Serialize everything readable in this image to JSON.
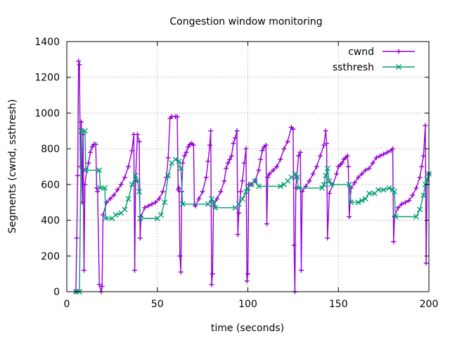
{
  "chart_data": {
    "type": "line",
    "title": "Congestion window monitoring",
    "xlabel": "time (seconds)",
    "ylabel": "Segments (cwnd, ssthresh)",
    "xlim": [
      0,
      200
    ],
    "ylim": [
      0,
      1400
    ],
    "xticks": [
      0,
      50,
      100,
      150,
      200
    ],
    "yticks": [
      0,
      200,
      400,
      600,
      800,
      1000,
      1200,
      1400
    ],
    "grid": true,
    "legend_position": "top-right",
    "colors": {
      "cwnd": "#9400d3",
      "ssthresh": "#009e73"
    },
    "series": [
      {
        "name": "cwnd",
        "marker": "plus",
        "points": [
          [
            5,
            0
          ],
          [
            5.5,
            300
          ],
          [
            6,
            650
          ],
          [
            6.5,
            1290
          ],
          [
            7,
            1270
          ],
          [
            7.5,
            700
          ],
          [
            8,
            950
          ],
          [
            8.5,
            500
          ],
          [
            9,
            880
          ],
          [
            9.5,
            120
          ],
          [
            10,
            600
          ],
          [
            11,
            680
          ],
          [
            12,
            720
          ],
          [
            13,
            780
          ],
          [
            14,
            810
          ],
          [
            15,
            825
          ],
          [
            16,
            825
          ],
          [
            16.5,
            580
          ],
          [
            17,
            560
          ],
          [
            18,
            40
          ],
          [
            19,
            0
          ],
          [
            19.5,
            30
          ],
          [
            20,
            430
          ],
          [
            22,
            500
          ],
          [
            24,
            520
          ],
          [
            26,
            540
          ],
          [
            28,
            570
          ],
          [
            30,
            600
          ],
          [
            32,
            640
          ],
          [
            34,
            700
          ],
          [
            36,
            790
          ],
          [
            37,
            880
          ],
          [
            37.5,
            120
          ],
          [
            38,
            620
          ],
          [
            39,
            880
          ],
          [
            40,
            840
          ],
          [
            40.5,
            300
          ],
          [
            41,
            420
          ],
          [
            43,
            470
          ],
          [
            45,
            480
          ],
          [
            47,
            490
          ],
          [
            49,
            500
          ],
          [
            51,
            520
          ],
          [
            53,
            560
          ],
          [
            55,
            640
          ],
          [
            56,
            750
          ],
          [
            57,
            970
          ],
          [
            58,
            980
          ],
          [
            60,
            980
          ],
          [
            61,
            980
          ],
          [
            61.5,
            570
          ],
          [
            62,
            580
          ],
          [
            62.5,
            200
          ],
          [
            63,
            110
          ],
          [
            63.5,
            560
          ],
          [
            64,
            720
          ],
          [
            65,
            760
          ],
          [
            66,
            780
          ],
          [
            67,
            810
          ],
          [
            68,
            825
          ],
          [
            69,
            830
          ],
          [
            70,
            820
          ],
          [
            70.5,
            490
          ],
          [
            71,
            480
          ],
          [
            73,
            520
          ],
          [
            75,
            560
          ],
          [
            77,
            640
          ],
          [
            78,
            730
          ],
          [
            79,
            820
          ],
          [
            79.5,
            900
          ],
          [
            80,
            40
          ],
          [
            80.5,
            100
          ],
          [
            81,
            480
          ],
          [
            83,
            520
          ],
          [
            85,
            560
          ],
          [
            87,
            620
          ],
          [
            88,
            690
          ],
          [
            89,
            720
          ],
          [
            90,
            740
          ],
          [
            91,
            760
          ],
          [
            92,
            830
          ],
          [
            93,
            860
          ],
          [
            94,
            900
          ],
          [
            94.5,
            320
          ],
          [
            95,
            440
          ],
          [
            96,
            560
          ],
          [
            97,
            620
          ],
          [
            98,
            720
          ],
          [
            99,
            800
          ],
          [
            99.5,
            60
          ],
          [
            100,
            100
          ],
          [
            100.5,
            600
          ],
          [
            102,
            600
          ],
          [
            104,
            620
          ],
          [
            106,
            680
          ],
          [
            107,
            740
          ],
          [
            108,
            790
          ],
          [
            109,
            810
          ],
          [
            110,
            820
          ],
          [
            110.5,
            380
          ],
          [
            111,
            640
          ],
          [
            112,
            660
          ],
          [
            114,
            680
          ],
          [
            116,
            700
          ],
          [
            118,
            740
          ],
          [
            120,
            800
          ],
          [
            122,
            840
          ],
          [
            124,
            920
          ],
          [
            125,
            910
          ],
          [
            125.5,
            260
          ],
          [
            126,
            0
          ],
          [
            126.5,
            580
          ],
          [
            127,
            640
          ],
          [
            128,
            760
          ],
          [
            129,
            780
          ],
          [
            129.5,
            120
          ],
          [
            130,
            560
          ],
          [
            132,
            590
          ],
          [
            134,
            620
          ],
          [
            136,
            660
          ],
          [
            138,
            700
          ],
          [
            140,
            760
          ],
          [
            142,
            820
          ],
          [
            143,
            900
          ],
          [
            143.5,
            830
          ],
          [
            144,
            300
          ],
          [
            145,
            550
          ],
          [
            147,
            600
          ],
          [
            149,
            660
          ],
          [
            150,
            700
          ],
          [
            151,
            710
          ],
          [
            152,
            720
          ],
          [
            153,
            740
          ],
          [
            154,
            750
          ],
          [
            155,
            760
          ],
          [
            155.5,
            700
          ],
          [
            156,
            420
          ],
          [
            157,
            580
          ],
          [
            159,
            610
          ],
          [
            161,
            640
          ],
          [
            163,
            660
          ],
          [
            165,
            680
          ],
          [
            167,
            690
          ],
          [
            169,
            720
          ],
          [
            171,
            750
          ],
          [
            173,
            760
          ],
          [
            175,
            770
          ],
          [
            177,
            780
          ],
          [
            179,
            790
          ],
          [
            180,
            800
          ],
          [
            180.5,
            280
          ],
          [
            181,
            420
          ],
          [
            183,
            470
          ],
          [
            185,
            490
          ],
          [
            187,
            500
          ],
          [
            189,
            510
          ],
          [
            191,
            540
          ],
          [
            193,
            580
          ],
          [
            195,
            640
          ],
          [
            196,
            700
          ],
          [
            197,
            760
          ],
          [
            198,
            930
          ],
          [
            198.5,
            160
          ],
          [
            199,
            600
          ],
          [
            200,
            660
          ]
        ]
      },
      {
        "name": "ssthresh",
        "marker": "cross",
        "points": [
          [
            5,
            0
          ],
          [
            7,
            0
          ],
          [
            8,
            900
          ],
          [
            10,
            900
          ],
          [
            10.5,
            680
          ],
          [
            18,
            680
          ],
          [
            18.5,
            580
          ],
          [
            21,
            580
          ],
          [
            21.5,
            410
          ],
          [
            25,
            410
          ],
          [
            27,
            430
          ],
          [
            30,
            440
          ],
          [
            32,
            460
          ],
          [
            34,
            520
          ],
          [
            36,
            600
          ],
          [
            38,
            650
          ],
          [
            39,
            620
          ],
          [
            40,
            560
          ],
          [
            40.5,
            410
          ],
          [
            50,
            410
          ],
          [
            52,
            430
          ],
          [
            54,
            500
          ],
          [
            56,
            650
          ],
          [
            58,
            720
          ],
          [
            60,
            740
          ],
          [
            62,
            730
          ],
          [
            63,
            690
          ],
          [
            64,
            490
          ],
          [
            78,
            490
          ],
          [
            80,
            520
          ],
          [
            81,
            500
          ],
          [
            82,
            470
          ],
          [
            93,
            470
          ],
          [
            95,
            490
          ],
          [
            97,
            520
          ],
          [
            99,
            560
          ],
          [
            100,
            580
          ],
          [
            102,
            600
          ],
          [
            104,
            620
          ],
          [
            106,
            590
          ],
          [
            118,
            590
          ],
          [
            120,
            600
          ],
          [
            122,
            620
          ],
          [
            124,
            640
          ],
          [
            126,
            660
          ],
          [
            127,
            640
          ],
          [
            128,
            580
          ],
          [
            141,
            580
          ],
          [
            142,
            600
          ],
          [
            143,
            650
          ],
          [
            144,
            690
          ],
          [
            145,
            620
          ],
          [
            146,
            600
          ],
          [
            156,
            600
          ],
          [
            157,
            500
          ],
          [
            161,
            500
          ],
          [
            163,
            510
          ],
          [
            165,
            520
          ],
          [
            167,
            550
          ],
          [
            170,
            550
          ],
          [
            172,
            570
          ],
          [
            175,
            570
          ],
          [
            178,
            580
          ],
          [
            180,
            570
          ],
          [
            181,
            560
          ],
          [
            181.5,
            420
          ],
          [
            193,
            420
          ],
          [
            195,
            460
          ],
          [
            197,
            540
          ],
          [
            198,
            600
          ],
          [
            199,
            630
          ],
          [
            200,
            660
          ]
        ]
      }
    ]
  }
}
